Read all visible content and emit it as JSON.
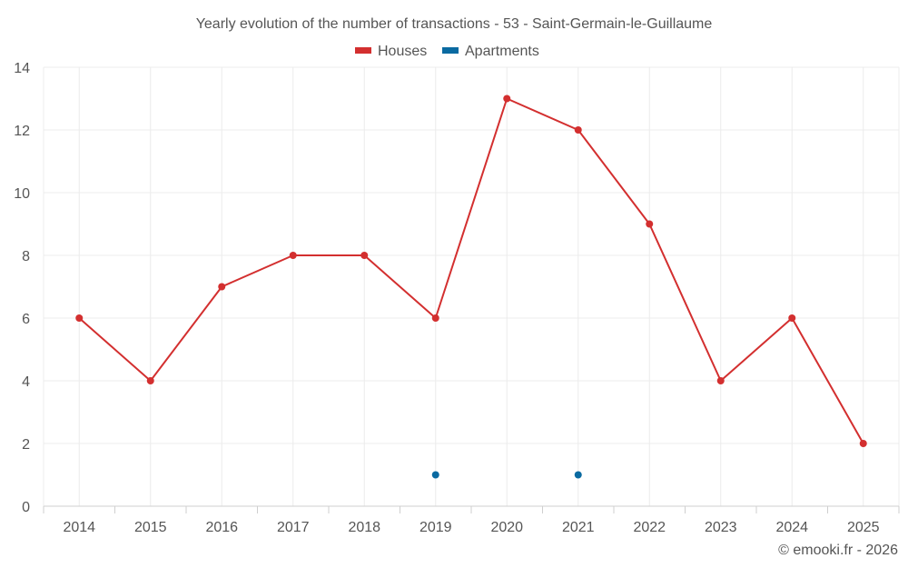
{
  "chart_data": {
    "type": "line",
    "title": "Yearly evolution of the number of transactions - 53 - Saint-Germain-le-Guillaume",
    "categories": [
      "2014",
      "2015",
      "2016",
      "2017",
      "2018",
      "2019",
      "2020",
      "2021",
      "2022",
      "2023",
      "2024",
      "2025"
    ],
    "ylim": [
      0,
      14
    ],
    "yticks": [
      0,
      2,
      4,
      6,
      8,
      10,
      12,
      14
    ],
    "xlabel": "",
    "ylabel": "",
    "grid": true,
    "legend_position": "top-center",
    "series": [
      {
        "name": "Houses",
        "color": "#d32f2f",
        "values": [
          6,
          4,
          7,
          8,
          8,
          6,
          13,
          12,
          9,
          4,
          6,
          2
        ]
      },
      {
        "name": "Apartments",
        "color": "#0a6aa1",
        "values": [
          null,
          null,
          null,
          null,
          null,
          1,
          null,
          1,
          null,
          null,
          null,
          null
        ]
      }
    ],
    "credit": "© emooki.fr - 2026"
  }
}
